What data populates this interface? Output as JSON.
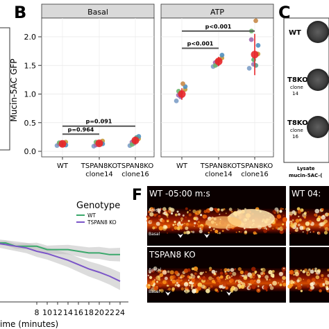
{
  "panels": {
    "B": "B",
    "C": "C",
    "F": "F"
  },
  "facets": [
    "Basal",
    "ATP"
  ],
  "ylabel": "Mucin-5AC GFP",
  "yticks": [
    {
      "v": 0.0,
      "label": "0.0"
    },
    {
      "v": 0.5,
      "label": "0.5"
    },
    {
      "v": 1.0,
      "label": "1.0"
    },
    {
      "v": 1.5,
      "label": "1.5"
    },
    {
      "v": 2.0,
      "label": "2.0"
    }
  ],
  "groups": [
    {
      "line1": "WT",
      "line2": ""
    },
    {
      "line1": "TSPAN8KO",
      "line2": "clone14"
    },
    {
      "line1": "TSPAN8KO",
      "line2": "clone16"
    }
  ],
  "chart_data": {
    "type": "scatter",
    "ylim": [
      0,
      2.25
    ],
    "categories": [
      "WT",
      "TSPAN8KO clone14",
      "TSPAN8KO clone16"
    ],
    "facets": [
      {
        "name": "Basal",
        "means": [
          0.13,
          0.14,
          0.19
        ],
        "errors": [
          0.03,
          0.03,
          0.06
        ],
        "points": [
          [
            0.1,
            0.12,
            0.14,
            0.16,
            0.11,
            0.13,
            0.15,
            0.12
          ],
          [
            0.09,
            0.12,
            0.15,
            0.18,
            0.13,
            0.11,
            0.16,
            0.14
          ],
          [
            0.1,
            0.14,
            0.18,
            0.22,
            0.26,
            0.16,
            0.12,
            0.2,
            0.24
          ]
        ],
        "brackets": [
          {
            "from": 0,
            "to": 1,
            "y": 0.3,
            "label": "p=0.964"
          },
          {
            "from": 0,
            "to": 2,
            "y": 0.44,
            "label": "p=0.091"
          }
        ]
      },
      {
        "name": "ATP",
        "means": [
          1.0,
          1.57,
          1.69
        ],
        "errors": [
          0.1,
          0.08,
          0.36
        ],
        "points": [
          [
            0.88,
            0.95,
            1.02,
            1.08,
            1.13,
            0.98,
            1.05,
            1.18
          ],
          [
            1.48,
            1.52,
            1.58,
            1.63,
            1.68,
            1.55,
            1.5,
            1.6
          ],
          [
            1.45,
            1.52,
            1.6,
            1.7,
            1.85,
            1.95,
            2.1,
            2.28,
            1.5
          ]
        ],
        "brackets": [
          {
            "from": 0,
            "to": 1,
            "y": 1.8,
            "label": "p<0.001"
          },
          {
            "from": 0,
            "to": 2,
            "y": 2.1,
            "label": "p<0.001"
          }
        ]
      }
    ]
  },
  "panel_c": {
    "rows": [
      {
        "line1": "WT",
        "line2": "",
        "line3": ""
      },
      {
        "line1": "T8KO",
        "line2": "clone",
        "line3": "14"
      },
      {
        "line1": "T8KO",
        "line2": "clone",
        "line3": "16"
      }
    ],
    "caption1": "Lysate",
    "caption2": "mucin-5AC-("
  },
  "panel_e": {
    "legend_title": "Genotype",
    "legend_items": [
      {
        "label": "WT",
        "color": "#3aa86b"
      },
      {
        "label": "TSPAN8 KO",
        "color": "#7b55c8"
      }
    ],
    "xticks": [
      "8",
      "10",
      "12",
      "14",
      "16",
      "18",
      "20",
      "22",
      "24"
    ],
    "xlabel": "ime (minutes)",
    "chart_data": {
      "type": "line",
      "x": [
        0,
        2,
        4,
        6,
        8,
        10,
        12,
        14,
        16,
        18,
        20,
        22,
        24
      ],
      "series": [
        {
          "name": "WT",
          "values": [
            1.0,
            1.0,
            0.99,
            0.99,
            0.99,
            0.98,
            0.98,
            0.98,
            0.975,
            0.97,
            0.97,
            0.965,
            0.965
          ]
        },
        {
          "name": "TSPAN8 KO",
          "values": [
            1.0,
            0.995,
            0.99,
            0.985,
            0.975,
            0.968,
            0.958,
            0.948,
            0.935,
            0.922,
            0.912,
            0.9,
            0.885
          ]
        }
      ]
    }
  },
  "panel_f": {
    "frames": [
      {
        "label": "WT  -05:00 m:s"
      },
      {
        "label": "WT  04:"
      },
      {
        "label": "TSPAN8 KO"
      }
    ],
    "apical": "Apical",
    "basal": "Basal"
  }
}
